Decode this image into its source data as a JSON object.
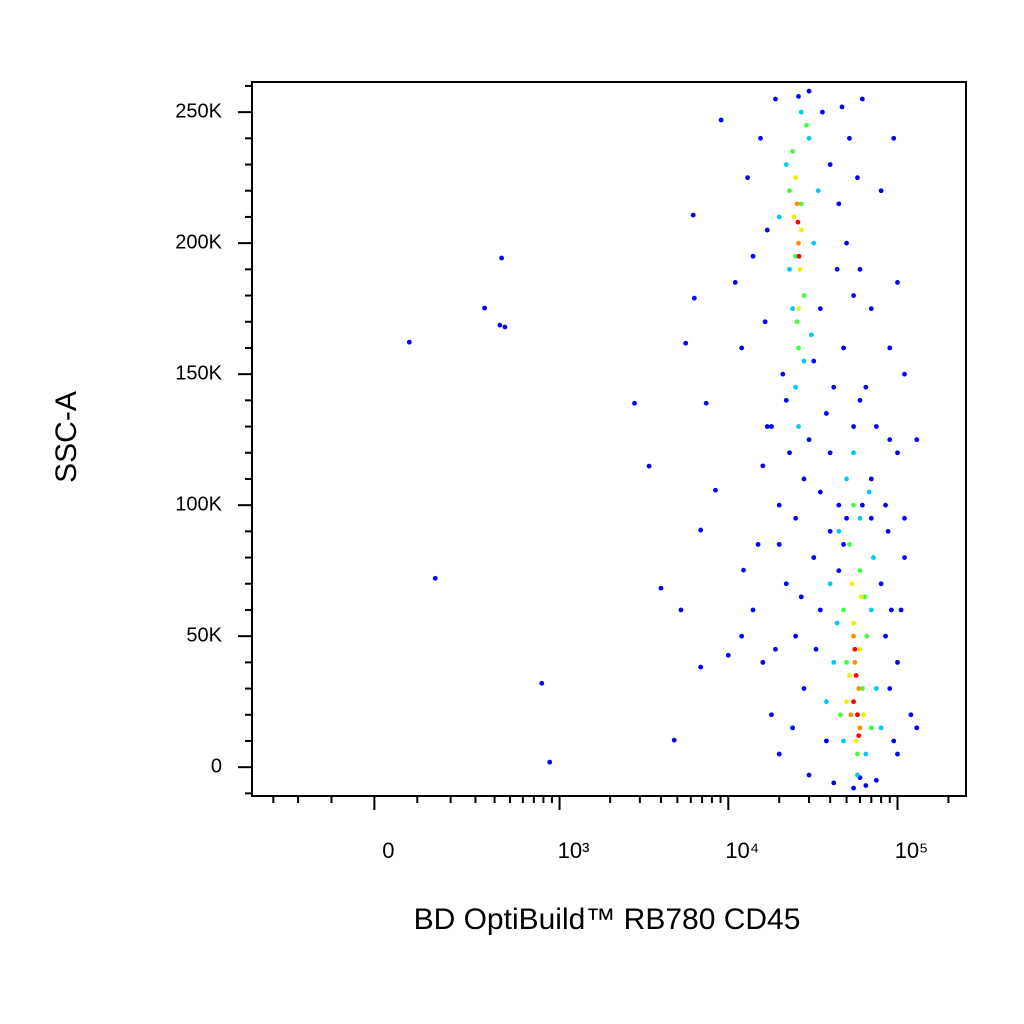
{
  "chart_data": {
    "type": "scatter",
    "x_label": "BD OptiBuild™ RB780 CD45",
    "y_label": "SSC-A",
    "xscale": {
      "type": "asinh",
      "width": 162
    },
    "xlim": [
      -413,
      254000
    ],
    "ylim": [
      -11000,
      261500
    ],
    "xticks": [
      0,
      {
        "value": 1000,
        "label": "10³"
      },
      {
        "value": 10000,
        "label": "10⁴"
      },
      {
        "value": 100000,
        "label": "10⁵"
      }
    ],
    "xminorticks": [
      -300,
      -200,
      -100,
      100,
      200,
      300,
      400,
      500,
      600,
      700,
      800,
      900,
      2000,
      3000,
      4000,
      5000,
      6000,
      7000,
      8000,
      9000,
      20000,
      30000,
      40000,
      50000,
      60000,
      70000,
      80000,
      90000,
      200000
    ],
    "yticks": [
      0,
      {
        "value": 50000,
        "label": "50K"
      },
      {
        "value": 100000,
        "label": "100K"
      },
      {
        "value": 150000,
        "label": "150K"
      },
      {
        "value": 200000,
        "label": "200K"
      },
      {
        "value": 250000,
        "label": "250K"
      }
    ],
    "yminorticks": [
      -10000,
      10000,
      20000,
      30000,
      40000,
      60000,
      70000,
      80000,
      90000,
      110000,
      120000,
      130000,
      140000,
      160000,
      170000,
      180000,
      190000,
      210000,
      220000,
      230000,
      240000,
      260000
    ],
    "series": [
      {
        "color": "#0000ff",
        "x": [
          80,
          443,
          345,
          432,
          465,
          150,
          782,
          873,
          2790,
          3400,
          4000,
          5250,
          4790,
          6870,
          9070,
          6300,
          5600,
          7400,
          8400,
          6870,
          6200,
          10000,
          12300,
          15500,
          17000,
          19000,
          21000,
          16500,
          36000,
          40000,
          45000,
          50000,
          55000,
          48000,
          60000,
          70000,
          42000,
          38000,
          32000,
          22000,
          14000,
          13000,
          30000,
          26000,
          52000,
          80000,
          90000,
          75000,
          18000,
          65000,
          35000,
          44000,
          58000,
          12000,
          11000,
          23000,
          28000,
          47000,
          62000,
          95000,
          100000,
          110000,
          130000,
          16000,
          20000,
          25000,
          30000,
          35000,
          40000,
          55000,
          70000,
          85000,
          100000,
          20000,
          60000,
          45000,
          90000,
          17000,
          110000,
          14000,
          16000,
          18000,
          20000,
          22000,
          25000,
          28000,
          30000,
          32000,
          35000,
          38000,
          40000,
          42000,
          45000,
          48000,
          75000,
          80000,
          85000,
          90000,
          95000,
          100000,
          105000,
          110000,
          120000,
          130000,
          70000,
          62000,
          55000,
          65000,
          88000,
          15000,
          24000,
          33000,
          27000,
          19000,
          92000,
          100000,
          12000,
          60000,
          50000
        ],
        "values": [
          162200,
          194300,
          175200,
          168700,
          168000,
          72100,
          32000,
          1900,
          138900,
          114900,
          68300,
          60000,
          10300,
          38200,
          247000,
          179000,
          161800,
          138900,
          105700,
          90500,
          210700,
          42700,
          75200,
          240000,
          205000,
          255000,
          150000,
          170000,
          250000,
          230000,
          215000,
          200000,
          180000,
          160000,
          190000,
          175000,
          145000,
          135000,
          155000,
          140000,
          195000,
          225000,
          258000,
          256000,
          240000,
          220000,
          160000,
          130000,
          130000,
          145000,
          175000,
          190000,
          225000,
          160000,
          185000,
          120000,
          110000,
          252000,
          255000,
          240000,
          185000,
          150000,
          125000,
          115000,
          100000,
          95000,
          125000,
          105000,
          120000,
          130000,
          110000,
          100000,
          120000,
          85000,
          140000,
          100000,
          125000,
          130000,
          95000,
          60000,
          40000,
          20000,
          5000,
          70000,
          50000,
          30000,
          -3000,
          80000,
          60000,
          10000,
          90000,
          -6000,
          75000,
          85000,
          -5000,
          70000,
          50000,
          30000,
          10000,
          40000,
          60000,
          80000,
          20000,
          15000,
          95000,
          100000,
          -8000,
          -7000,
          90000,
          85000,
          15000,
          45000,
          65000,
          45000,
          60000,
          5000,
          50000,
          -4000,
          95000
        ]
      },
      {
        "color": "#00c8ff",
        "x": [
          22000,
          30000,
          24000,
          32000,
          20000,
          28000,
          34000,
          25000,
          23000,
          31000,
          27000,
          26000,
          40000,
          45000,
          50000,
          60000,
          70000,
          75000,
          42000,
          48000,
          65000,
          72000,
          38000,
          55000,
          68000,
          80000,
          44000,
          58000
        ],
        "values": [
          230000,
          240000,
          175000,
          200000,
          210000,
          155000,
          220000,
          145000,
          190000,
          165000,
          250000,
          130000,
          70000,
          90000,
          110000,
          95000,
          60000,
          30000,
          40000,
          10000,
          5000,
          80000,
          25000,
          120000,
          105000,
          15000,
          55000,
          -3000
        ]
      },
      {
        "color": "#40ff40",
        "x": [
          24000,
          27000,
          25000,
          28000,
          26000,
          23000,
          29000,
          25500,
          52000,
          60000,
          48000,
          66000,
          55000,
          62000,
          46000,
          70000,
          58000,
          50000,
          64000
        ],
        "values": [
          235000,
          215000,
          195000,
          180000,
          160000,
          220000,
          245000,
          170000,
          85000,
          75000,
          60000,
          50000,
          100000,
          30000,
          20000,
          15000,
          5000,
          40000,
          65000
        ]
      },
      {
        "color": "#f0f000",
        "x": [
          25000,
          27000,
          26500,
          24500,
          26000,
          55000,
          60000,
          52000,
          63000,
          57000,
          50000,
          61000,
          54000
        ],
        "values": [
          225000,
          205000,
          190000,
          210000,
          175000,
          55000,
          45000,
          35000,
          20000,
          10000,
          25000,
          65000,
          70000
        ]
      },
      {
        "color": "#ff9000",
        "x": [
          25500,
          26000,
          56000,
          59000,
          53000,
          60000,
          55000
        ],
        "values": [
          215000,
          200000,
          40000,
          30000,
          20000,
          15000,
          50000
        ]
      },
      {
        "color": "#ff0000",
        "x": [
          25800,
          26200,
          57000,
          55000,
          58000,
          56000,
          59000
        ],
        "values": [
          208000,
          195000,
          35000,
          25000,
          20000,
          45000,
          12000
        ]
      }
    ]
  }
}
